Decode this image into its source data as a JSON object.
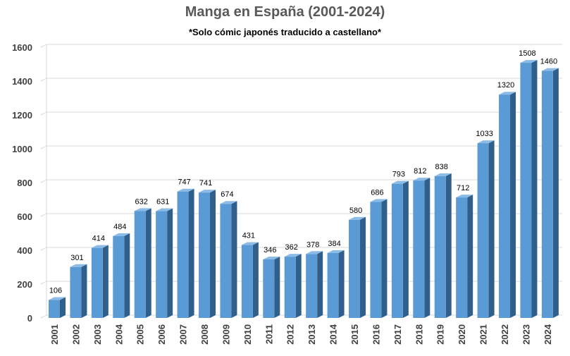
{
  "chart_data": {
    "type": "bar",
    "title": "Manga en España (2001-2024)",
    "subtitle": "*Solo cómic japonés traducido a castellano*",
    "xlabel": "",
    "ylabel": "",
    "categories": [
      "2001",
      "2002",
      "2003",
      "2004",
      "2005",
      "2006",
      "2007",
      "2008",
      "2009",
      "2010",
      "2011",
      "2012",
      "2013",
      "2014",
      "2015",
      "2016",
      "2017",
      "2018",
      "2019",
      "2020",
      "2021",
      "2022",
      "2023",
      "2024"
    ],
    "values": [
      106,
      301,
      414,
      484,
      632,
      631,
      747,
      741,
      674,
      431,
      346,
      362,
      378,
      384,
      580,
      686,
      793,
      812,
      838,
      712,
      1033,
      1320,
      1508,
      1460
    ],
    "ylim": [
      0,
      1600
    ],
    "yticks": [
      0,
      200,
      400,
      600,
      800,
      1000,
      1200,
      1400,
      1600
    ],
    "grid": true,
    "legend": "none",
    "colors": {
      "front": "#5b9bd5",
      "side": "#2f5f8a",
      "top": "#8cbbe6",
      "grid": "#d9d9d9"
    }
  }
}
